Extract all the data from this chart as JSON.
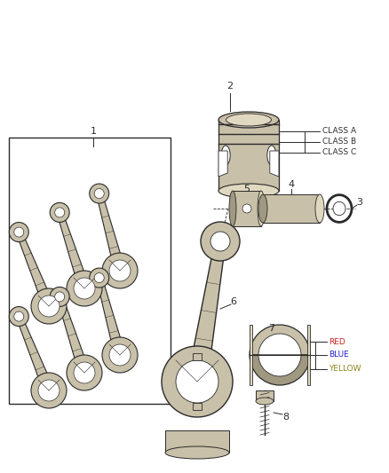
{
  "bg_color": "#ffffff",
  "lc": "#2a2a2a",
  "pc_l": "#c8c0a8",
  "pc_m": "#a09880",
  "pc_d": "#706858",
  "pc_vl": "#e0d8c0",
  "figsize": [
    4.38,
    5.33
  ],
  "dpi": 100,
  "xlim": [
    0,
    438
  ],
  "ylim": [
    0,
    533
  ],
  "label_fs": 8,
  "class_labels": [
    "CLASS A",
    "CLASS B",
    "CLASS C"
  ],
  "bearing_labels": [
    {
      "text": "RED",
      "color": "#cc2020"
    },
    {
      "text": "BLUE",
      "color": "#2020cc"
    },
    {
      "text": "YELLOW",
      "color": "#888820"
    }
  ]
}
